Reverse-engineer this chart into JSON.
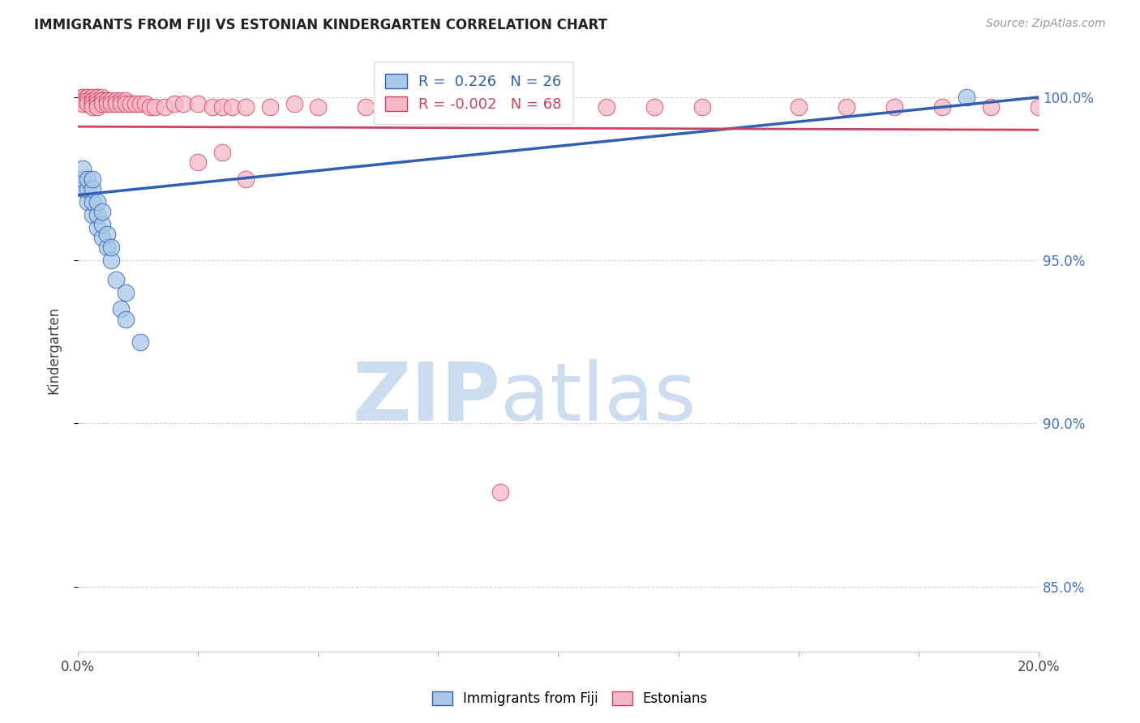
{
  "title": "IMMIGRANTS FROM FIJI VS ESTONIAN KINDERGARTEN CORRELATION CHART",
  "source": "Source: ZipAtlas.com",
  "ylabel": "Kindergarten",
  "ytick_labels": [
    "85.0%",
    "90.0%",
    "95.0%",
    "100.0%"
  ],
  "ytick_values": [
    0.85,
    0.9,
    0.95,
    1.0
  ],
  "xlim": [
    0.0,
    0.2
  ],
  "ylim": [
    0.83,
    1.015
  ],
  "legend_blue_R": "0.226",
  "legend_blue_N": "26",
  "legend_pink_R": "-0.002",
  "legend_pink_N": "68",
  "blue_color": "#a8c8e8",
  "pink_color": "#f5b8c8",
  "blue_line_color": "#3060b0",
  "pink_line_color": "#d04060",
  "blue_trend_x0": 0.0,
  "blue_trend_y0": 0.97,
  "blue_trend_x1": 0.2,
  "blue_trend_y1": 1.0,
  "pink_trend_x0": 0.0,
  "pink_trend_y0": 0.991,
  "pink_trend_x1": 0.2,
  "pink_trend_y1": 0.99,
  "blue_scatter_x": [
    0.001,
    0.001,
    0.001,
    0.002,
    0.002,
    0.002,
    0.003,
    0.003,
    0.003,
    0.003,
    0.004,
    0.004,
    0.004,
    0.005,
    0.005,
    0.005,
    0.006,
    0.006,
    0.007,
    0.007,
    0.008,
    0.009,
    0.01,
    0.01,
    0.013,
    0.185
  ],
  "blue_scatter_y": [
    0.972,
    0.975,
    0.978,
    0.968,
    0.972,
    0.975,
    0.964,
    0.968,
    0.972,
    0.975,
    0.96,
    0.964,
    0.968,
    0.957,
    0.961,
    0.965,
    0.954,
    0.958,
    0.95,
    0.954,
    0.944,
    0.935,
    0.932,
    0.94,
    0.925,
    1.0
  ],
  "pink_scatter_x": [
    0.001,
    0.001,
    0.001,
    0.001,
    0.002,
    0.002,
    0.002,
    0.002,
    0.003,
    0.003,
    0.003,
    0.003,
    0.003,
    0.004,
    0.004,
    0.004,
    0.004,
    0.004,
    0.005,
    0.005,
    0.005,
    0.005,
    0.006,
    0.006,
    0.006,
    0.007,
    0.007,
    0.008,
    0.008,
    0.009,
    0.009,
    0.01,
    0.01,
    0.011,
    0.012,
    0.013,
    0.014,
    0.015,
    0.016,
    0.018,
    0.02,
    0.022,
    0.025,
    0.028,
    0.03,
    0.032,
    0.035,
    0.04,
    0.045,
    0.05,
    0.06,
    0.07,
    0.08,
    0.09,
    0.1,
    0.11,
    0.12,
    0.13,
    0.15,
    0.16,
    0.17,
    0.18,
    0.19,
    0.2,
    0.03,
    0.025,
    0.035,
    0.088
  ],
  "pink_scatter_y": [
    1.0,
    1.0,
    0.999,
    0.998,
    1.0,
    1.0,
    0.999,
    0.998,
    1.0,
    0.999,
    0.999,
    0.998,
    0.997,
    1.0,
    1.0,
    0.999,
    0.998,
    0.997,
    1.0,
    0.999,
    0.999,
    0.998,
    0.999,
    0.999,
    0.998,
    0.999,
    0.998,
    0.999,
    0.998,
    0.999,
    0.998,
    0.999,
    0.998,
    0.998,
    0.998,
    0.998,
    0.998,
    0.997,
    0.997,
    0.997,
    0.998,
    0.998,
    0.998,
    0.997,
    0.997,
    0.997,
    0.997,
    0.997,
    0.998,
    0.997,
    0.997,
    0.997,
    0.997,
    0.997,
    0.997,
    0.997,
    0.997,
    0.997,
    0.997,
    0.997,
    0.997,
    0.997,
    0.997,
    0.997,
    0.983,
    0.98,
    0.975,
    0.879
  ],
  "watermark_zip": "ZIP",
  "watermark_atlas": "atlas",
  "watermark_color": "#ccddf0",
  "grid_color": "#cccccc",
  "background_color": "#ffffff"
}
